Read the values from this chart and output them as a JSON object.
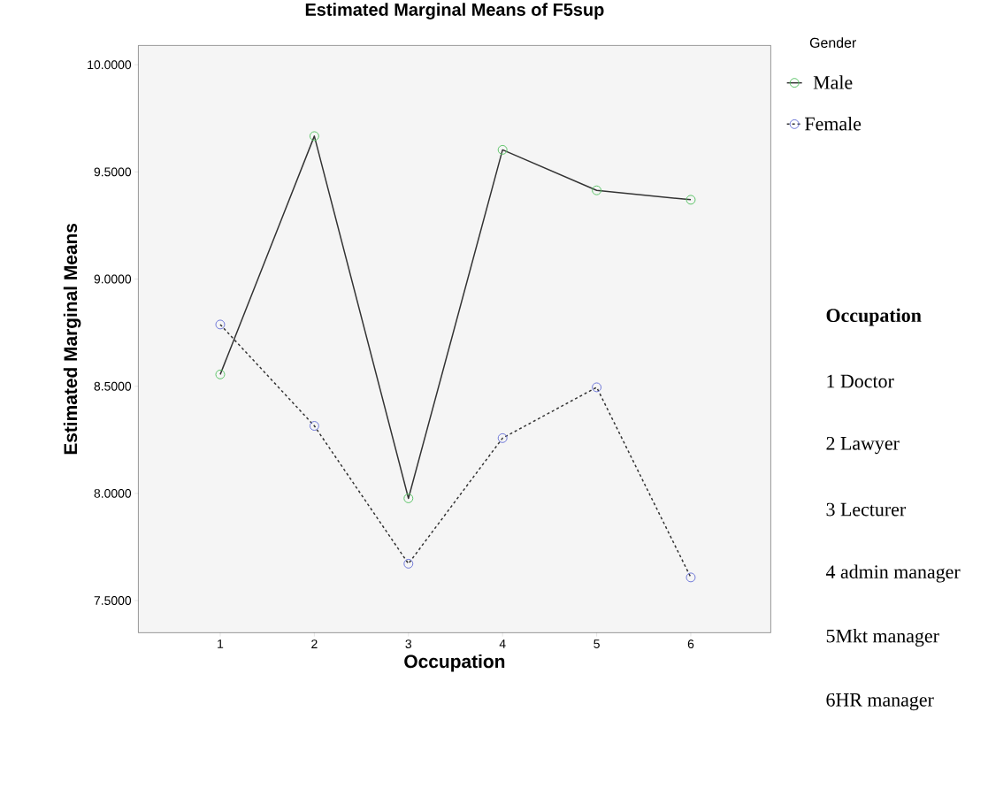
{
  "chart_data": {
    "type": "line",
    "title": "Estimated Marginal Means of F5sup",
    "xlabel": "Occupation",
    "ylabel": "Estimated Marginal Means",
    "legend_title": "Gender",
    "categories": [
      "1",
      "2",
      "3",
      "4",
      "5",
      "6"
    ],
    "series": [
      {
        "name": "Male",
        "color": "#5cc468",
        "line_style": "solid",
        "values": [
          8.555,
          9.667,
          7.977,
          9.603,
          9.414,
          9.37
        ]
      },
      {
        "name": "Female",
        "color": "#6f78d8",
        "line_style": "dashed",
        "values": [
          8.788,
          8.315,
          7.672,
          8.258,
          8.495,
          7.608
        ]
      }
    ],
    "ylim": [
      7.35,
      10.09
    ],
    "yticks": [
      {
        "value": 7.5,
        "label": "7.5000"
      },
      {
        "value": 8.0,
        "label": "8.0000"
      },
      {
        "value": 8.5,
        "label": "8.5000"
      },
      {
        "value": 9.0,
        "label": "9.0000"
      },
      {
        "value": 9.5,
        "label": "9.5000"
      },
      {
        "value": 10.0,
        "label": "10.0000"
      }
    ],
    "marker": "circle",
    "grid": false,
    "legend": "right",
    "annotations": [
      "Occupation",
      "1 Doctor",
      "2 Lawyer",
      "3 Lecturer",
      "4 admin manager",
      "5Mkt manager",
      "6HR manager"
    ]
  }
}
